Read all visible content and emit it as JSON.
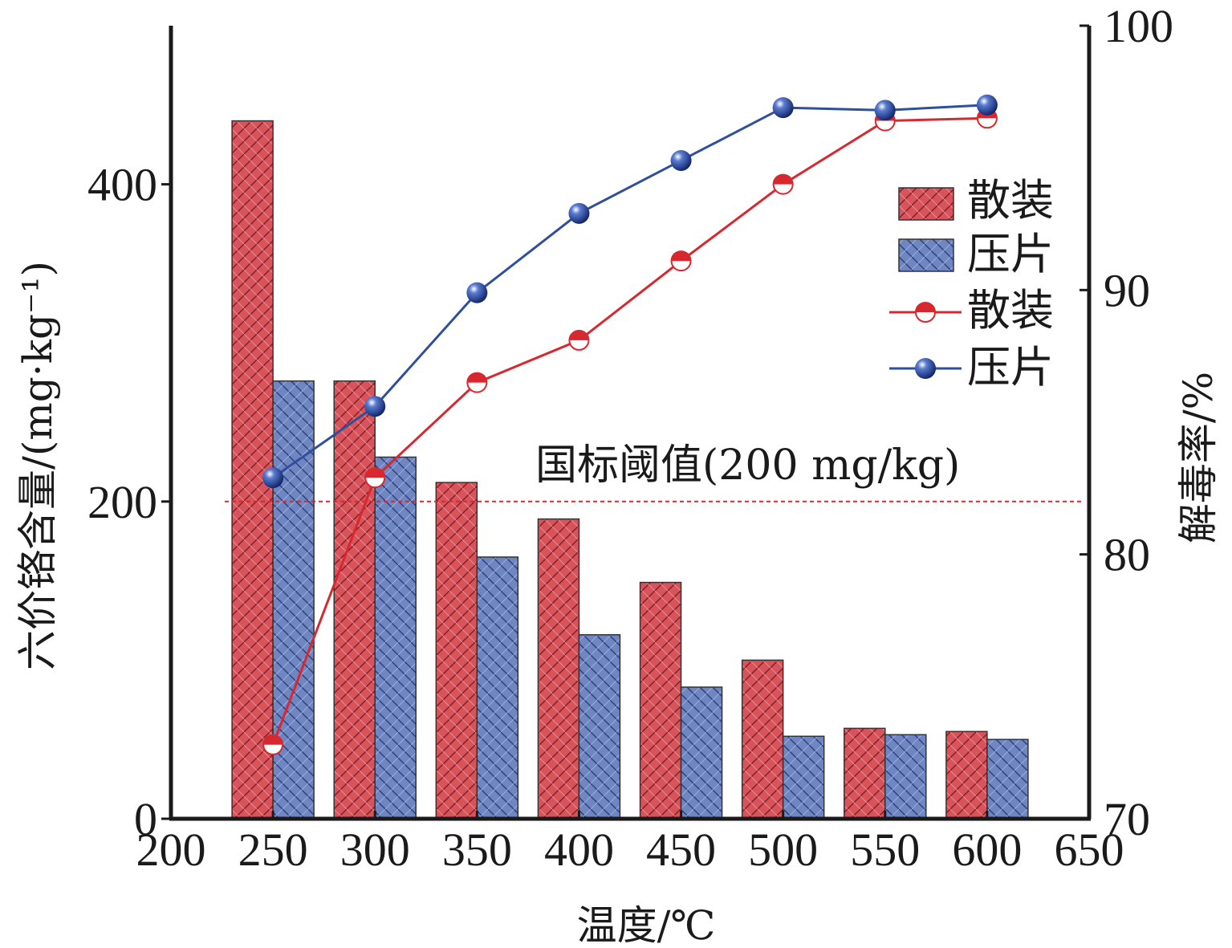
{
  "chart_data": {
    "type": "bar",
    "xlabel": "温度/℃",
    "ylabel_left": "六价铬含量/(mg·kg⁻¹)",
    "ylabel_right": "解毒率/%",
    "x_ticks": [
      "200",
      "250",
      "300",
      "350",
      "400",
      "450",
      "500",
      "550",
      "600",
      "650"
    ],
    "xlim": [
      200,
      650
    ],
    "ylim_left": [
      0,
      500
    ],
    "y_ticks_left": [
      "0",
      "200",
      "400"
    ],
    "ylim_right": [
      70,
      100
    ],
    "y_ticks_right": [
      "70",
      "80",
      "90",
      "100"
    ],
    "categories": [
      "250",
      "300",
      "350",
      "400",
      "450",
      "500",
      "550",
      "600"
    ],
    "bar_series": [
      {
        "name": "散装",
        "color": "#d9535b",
        "values": [
          440,
          276,
          212,
          189,
          149,
          100,
          57,
          55
        ]
      },
      {
        "name": "压片",
        "color": "#6f86c2",
        "values": [
          276,
          228,
          165,
          116,
          83,
          52,
          53,
          50
        ]
      }
    ],
    "line_series": [
      {
        "name": "散装",
        "color": "#d7282f",
        "x": [
          250,
          300,
          350,
          400,
          450,
          500,
          550,
          600
        ],
        "values": [
          72.8,
          82.9,
          86.5,
          88.1,
          91.1,
          94.0,
          96.4,
          96.5
        ]
      },
      {
        "name": "压片",
        "color": "#2f4f9d",
        "x": [
          250,
          300,
          350,
          400,
          450,
          500,
          550,
          600
        ],
        "values": [
          82.9,
          85.6,
          89.9,
          92.9,
          94.9,
          96.9,
          96.8,
          97.0
        ]
      }
    ],
    "threshold": {
      "label": "国标阈值(200 mg/kg)",
      "value": 200,
      "color": "#d7282f"
    },
    "legend_position": "top-right",
    "grid": false
  }
}
